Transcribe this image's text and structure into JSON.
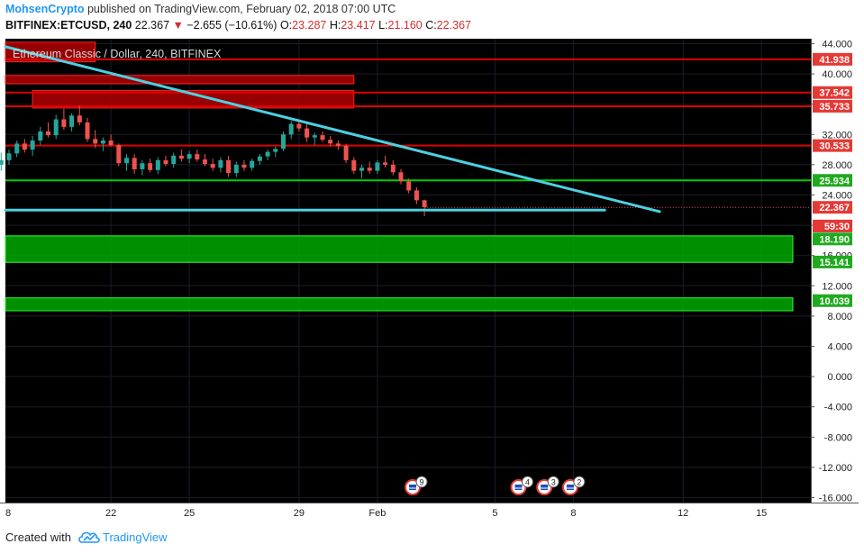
{
  "header": {
    "author": "MohsenCrypto",
    "published_text": "published on TradingView.com, February 02, 2018 07:00 UTC",
    "symbol": "BITFINEX:ETCUSD, 240",
    "last": "22.367",
    "change": "−2.655 (−10.61%)",
    "open_label": "O:",
    "open": "23.287",
    "high_label": "H:",
    "high": "23.417",
    "low_label": "L:",
    "low": "21.160",
    "close_label": "C:",
    "close": "22.367"
  },
  "footer": {
    "created_with": "Created with",
    "brand": "TradingView"
  },
  "colors": {
    "background": "#000000",
    "up": "#26a69a",
    "down": "#ef5350",
    "red_zone": "#cc0000",
    "green_zone": "#00c800",
    "trend": "#4dd0e1"
  },
  "chart_data": {
    "type": "candlestick",
    "title": "Ethereum Classic / Dollar, 240, BITFINEX",
    "ylim": [
      -16,
      44
    ],
    "y_ticks": [
      "44.000",
      "40.000",
      "36.000",
      "32.000",
      "28.000",
      "24.000",
      "20.000",
      "16.000",
      "12.000",
      "8.000",
      "4.000",
      "0.000",
      "-4.000",
      "-8.000",
      "-12.000",
      "-16.000"
    ],
    "x_ticks": [
      {
        "label": "8",
        "x": -1
      },
      {
        "label": "22",
        "x": 13
      },
      {
        "label": "25",
        "x": 23
      },
      {
        "label": "29",
        "x": 37
      },
      {
        "label": "Feb",
        "x": 47
      },
      {
        "label": "5",
        "x": 62
      },
      {
        "label": "8",
        "x": 72
      },
      {
        "label": "12",
        "x": 86
      },
      {
        "label": "15",
        "x": 96
      }
    ],
    "price_labels": [
      {
        "text": "41.938",
        "value": 41.938,
        "color": "#e53935"
      },
      {
        "text": "37.542",
        "value": 37.542,
        "color": "#e53935"
      },
      {
        "text": "35.733",
        "value": 35.733,
        "color": "#e53935"
      },
      {
        "text": "30.533",
        "value": 30.533,
        "color": "#e53935"
      },
      {
        "text": "25.934",
        "value": 25.934,
        "color": "#1faa1f"
      },
      {
        "text": "22.367",
        "value": 22.367,
        "color": "#e53935"
      },
      {
        "text": "59:30",
        "value": 19.9,
        "color": "#e53935"
      },
      {
        "text": "18.190",
        "value": 18.19,
        "color": "#1faa1f"
      },
      {
        "text": "15.141",
        "value": 15.141,
        "color": "#1faa1f"
      },
      {
        "text": "10.039",
        "value": 10.039,
        "color": "#1faa1f"
      }
    ],
    "levels": [
      {
        "value": 41.938,
        "color": "#e00000"
      },
      {
        "value": 37.542,
        "color": "#e00000"
      },
      {
        "value": 35.733,
        "color": "#e00000"
      },
      {
        "value": 30.533,
        "color": "#e00000"
      },
      {
        "value": 25.934,
        "color": "#00d000"
      }
    ],
    "zones": [
      {
        "y1": 38.7,
        "y2": 39.8,
        "x1": -1,
        "x2": 44,
        "color": "#b00000"
      },
      {
        "y1": 35.5,
        "y2": 37.8,
        "x1": 3,
        "x2": 44,
        "color": "#b00000"
      },
      {
        "y1": 41.6,
        "y2": 44.2,
        "x1": -1,
        "x2": 11,
        "color": "#b00000"
      },
      {
        "y1": 15.1,
        "y2": 18.6,
        "x1": -1,
        "x2": 100,
        "color": "#00a800"
      },
      {
        "y1": 8.7,
        "y2": 10.4,
        "x1": -1,
        "x2": 100,
        "color": "#00a800"
      }
    ],
    "trendlines": [
      {
        "x1": -1,
        "y1": 43.6,
        "x2": 83,
        "y2": 21.8,
        "color": "#4dd0e1"
      },
      {
        "x1": -1,
        "y1": 22.0,
        "x2": 76,
        "y2": 22.0,
        "color": "#4dd0e1"
      }
    ],
    "candles": [
      {
        "x": -1,
        "o": 28.0,
        "h": 29.6,
        "l": 27.2,
        "c": 28.6
      },
      {
        "x": 0,
        "o": 28.6,
        "h": 30.0,
        "l": 28.0,
        "c": 29.5
      },
      {
        "x": 1,
        "o": 29.5,
        "h": 31.2,
        "l": 29.0,
        "c": 30.8
      },
      {
        "x": 2,
        "o": 30.8,
        "h": 31.4,
        "l": 29.6,
        "c": 30.0
      },
      {
        "x": 3,
        "o": 30.0,
        "h": 31.8,
        "l": 29.2,
        "c": 31.2
      },
      {
        "x": 4,
        "o": 31.2,
        "h": 33.0,
        "l": 30.6,
        "c": 32.4
      },
      {
        "x": 5,
        "o": 32.4,
        "h": 33.6,
        "l": 31.6,
        "c": 31.9
      },
      {
        "x": 6,
        "o": 31.9,
        "h": 34.6,
        "l": 31.4,
        "c": 34.0
      },
      {
        "x": 7,
        "o": 34.0,
        "h": 35.4,
        "l": 32.6,
        "c": 33.0
      },
      {
        "x": 8,
        "o": 33.0,
        "h": 34.8,
        "l": 32.4,
        "c": 34.5
      },
      {
        "x": 9,
        "o": 34.5,
        "h": 35.8,
        "l": 33.2,
        "c": 33.6
      },
      {
        "x": 10,
        "o": 33.6,
        "h": 34.2,
        "l": 31.0,
        "c": 31.4
      },
      {
        "x": 11,
        "o": 31.4,
        "h": 32.6,
        "l": 30.2,
        "c": 30.8
      },
      {
        "x": 12,
        "o": 30.8,
        "h": 31.6,
        "l": 29.8,
        "c": 31.2
      },
      {
        "x": 13,
        "o": 31.2,
        "h": 32.0,
        "l": 30.4,
        "c": 30.6
      },
      {
        "x": 14,
        "o": 30.6,
        "h": 30.8,
        "l": 27.8,
        "c": 28.2
      },
      {
        "x": 15,
        "o": 28.2,
        "h": 29.4,
        "l": 27.2,
        "c": 28.9
      },
      {
        "x": 16,
        "o": 28.9,
        "h": 29.4,
        "l": 26.8,
        "c": 27.4
      },
      {
        "x": 17,
        "o": 27.4,
        "h": 28.6,
        "l": 26.6,
        "c": 28.2
      },
      {
        "x": 18,
        "o": 28.2,
        "h": 28.8,
        "l": 27.0,
        "c": 27.3
      },
      {
        "x": 19,
        "o": 27.3,
        "h": 29.0,
        "l": 26.8,
        "c": 28.6
      },
      {
        "x": 20,
        "o": 28.6,
        "h": 29.2,
        "l": 27.8,
        "c": 28.1
      },
      {
        "x": 21,
        "o": 28.1,
        "h": 29.6,
        "l": 27.6,
        "c": 29.2
      },
      {
        "x": 22,
        "o": 29.2,
        "h": 30.0,
        "l": 28.4,
        "c": 28.8
      },
      {
        "x": 23,
        "o": 28.8,
        "h": 29.8,
        "l": 28.2,
        "c": 29.4
      },
      {
        "x": 24,
        "o": 29.4,
        "h": 30.0,
        "l": 28.4,
        "c": 28.7
      },
      {
        "x": 25,
        "o": 28.7,
        "h": 29.4,
        "l": 27.8,
        "c": 28.1
      },
      {
        "x": 26,
        "o": 28.1,
        "h": 28.8,
        "l": 27.2,
        "c": 27.6
      },
      {
        "x": 27,
        "o": 27.6,
        "h": 29.0,
        "l": 27.0,
        "c": 28.6
      },
      {
        "x": 28,
        "o": 28.6,
        "h": 29.2,
        "l": 26.4,
        "c": 26.9
      },
      {
        "x": 29,
        "o": 26.9,
        "h": 28.4,
        "l": 26.4,
        "c": 28.0
      },
      {
        "x": 30,
        "o": 28.0,
        "h": 28.6,
        "l": 27.2,
        "c": 27.6
      },
      {
        "x": 31,
        "o": 27.6,
        "h": 28.8,
        "l": 27.2,
        "c": 28.5
      },
      {
        "x": 32,
        "o": 28.5,
        "h": 29.4,
        "l": 28.0,
        "c": 29.1
      },
      {
        "x": 33,
        "o": 29.1,
        "h": 30.0,
        "l": 28.6,
        "c": 29.7
      },
      {
        "x": 34,
        "o": 29.7,
        "h": 30.4,
        "l": 29.0,
        "c": 30.1
      },
      {
        "x": 35,
        "o": 30.1,
        "h": 32.4,
        "l": 29.8,
        "c": 32.0
      },
      {
        "x": 36,
        "o": 32.0,
        "h": 33.8,
        "l": 31.4,
        "c": 33.4
      },
      {
        "x": 37,
        "o": 33.4,
        "h": 34.0,
        "l": 32.4,
        "c": 32.8
      },
      {
        "x": 38,
        "o": 32.8,
        "h": 33.4,
        "l": 31.0,
        "c": 31.6
      },
      {
        "x": 39,
        "o": 31.6,
        "h": 32.2,
        "l": 30.6,
        "c": 31.9
      },
      {
        "x": 40,
        "o": 31.9,
        "h": 32.4,
        "l": 31.0,
        "c": 31.3
      },
      {
        "x": 41,
        "o": 31.3,
        "h": 31.8,
        "l": 30.4,
        "c": 30.8
      },
      {
        "x": 42,
        "o": 30.8,
        "h": 31.2,
        "l": 30.0,
        "c": 30.5
      },
      {
        "x": 43,
        "o": 30.5,
        "h": 30.8,
        "l": 28.2,
        "c": 28.6
      },
      {
        "x": 44,
        "o": 28.6,
        "h": 29.0,
        "l": 26.8,
        "c": 27.2
      },
      {
        "x": 45,
        "o": 27.2,
        "h": 28.0,
        "l": 26.2,
        "c": 27.6
      },
      {
        "x": 46,
        "o": 27.6,
        "h": 28.4,
        "l": 26.8,
        "c": 27.2
      },
      {
        "x": 47,
        "o": 27.2,
        "h": 28.6,
        "l": 26.8,
        "c": 28.3
      },
      {
        "x": 48,
        "o": 28.3,
        "h": 29.2,
        "l": 27.6,
        "c": 28.0
      },
      {
        "x": 49,
        "o": 28.0,
        "h": 28.6,
        "l": 26.6,
        "c": 27.0
      },
      {
        "x": 50,
        "o": 27.0,
        "h": 27.4,
        "l": 25.4,
        "c": 25.8
      },
      {
        "x": 51,
        "o": 25.8,
        "h": 26.2,
        "l": 24.2,
        "c": 24.6
      },
      {
        "x": 52,
        "o": 24.6,
        "h": 25.0,
        "l": 22.8,
        "c": 23.3
      },
      {
        "x": 53,
        "o": 23.3,
        "h": 23.4,
        "l": 21.2,
        "c": 22.4
      }
    ],
    "events": [
      {
        "x": 51.5,
        "count": "9"
      },
      {
        "x": 65,
        "count": "4"
      },
      {
        "x": 68.3,
        "count": "3"
      },
      {
        "x": 71.6,
        "count": "2"
      }
    ]
  }
}
